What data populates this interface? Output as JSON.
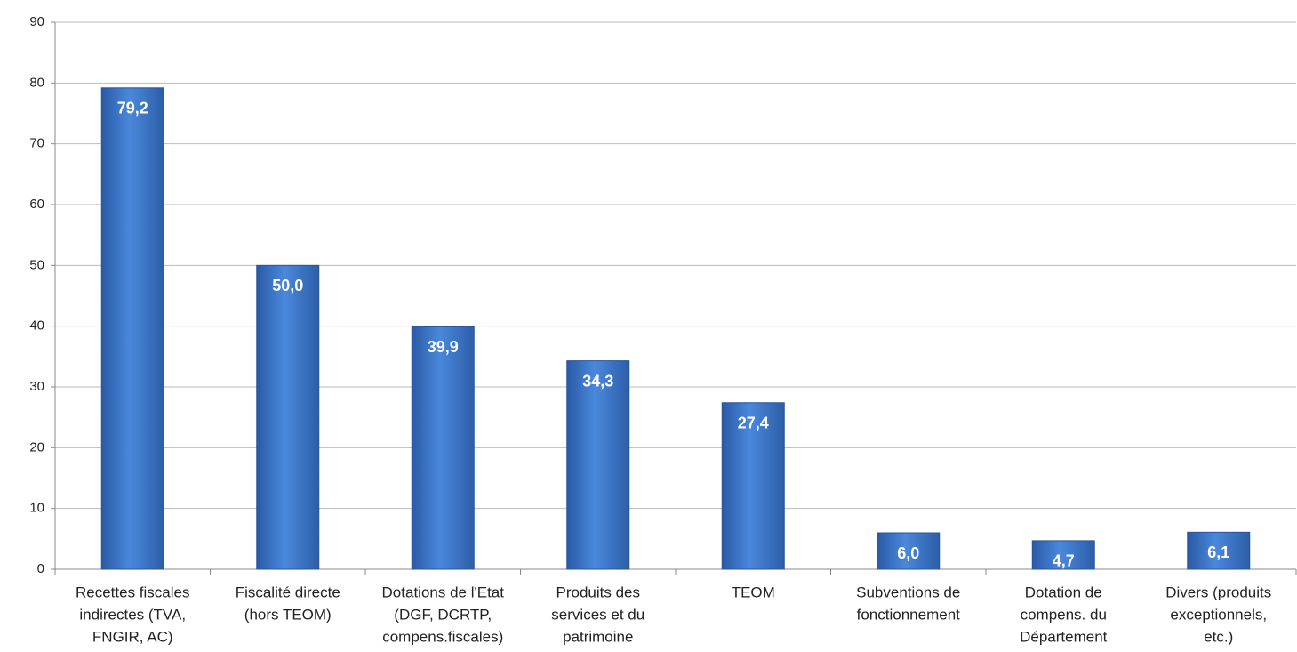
{
  "chart_data": {
    "type": "bar",
    "categories": [
      [
        "Recettes fiscales",
        "indirectes (TVA,",
        "FNGIR, AC)"
      ],
      [
        "Fiscalité directe",
        "(hors TEOM)"
      ],
      [
        "Dotations de l'Etat",
        "(DGF, DCRTP,",
        "compens.fiscales)"
      ],
      [
        "Produits des",
        "services et du",
        "patrimoine"
      ],
      [
        "TEOM"
      ],
      [
        "Subventions de",
        "fonctionnement"
      ],
      [
        "Dotation de",
        "compens. du",
        "Département"
      ],
      [
        "Divers (produits",
        "exceptionnels,",
        "etc.)"
      ]
    ],
    "values": [
      79.2,
      50.0,
      39.9,
      34.3,
      27.4,
      6.0,
      4.7,
      6.1
    ],
    "value_labels": [
      "79,2",
      "50,0",
      "39,9",
      "34,3",
      "27,4",
      "6,0",
      "4,7",
      "6,1"
    ],
    "color": "#3f7ad0",
    "ylim": [
      0,
      90
    ],
    "yticks": [
      0,
      10,
      20,
      30,
      40,
      50,
      60,
      70,
      80,
      90
    ],
    "grid": true
  }
}
